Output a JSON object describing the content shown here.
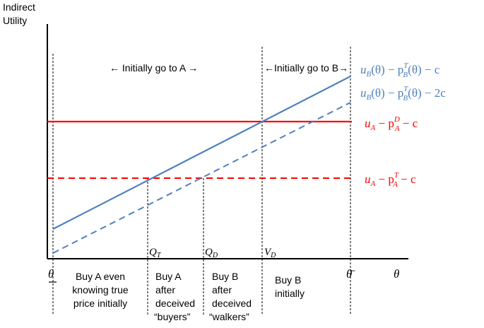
{
  "y_axis_label_line1": "Indirect",
  "y_axis_label_line2": "Utility",
  "x_axis_label": "θ",
  "theta_low": "θ",
  "theta_high": "θ̄",
  "arrow_A": "←  Initially go to A  →",
  "arrow_B": "←Initially go to B→",
  "ticks": {
    "q_t": {
      "base": "Q",
      "sub": "T"
    },
    "q_d": {
      "base": "Q",
      "sub": "D"
    },
    "v_d": {
      "base": "V",
      "sub": "D"
    }
  },
  "curves": {
    "blue_solid": {
      "prefix": "u",
      "sub": "B",
      "mid": "(θ) − p",
      "sup": "T",
      "sub2": "B",
      "suffix": "(θ) − c",
      "color": "#4F81BD"
    },
    "blue_dashed": {
      "prefix": "u",
      "sub": "B",
      "mid": "(θ) − p",
      "sup": "T",
      "sub2": "B",
      "suffix": "(θ) − 2c",
      "color": "#4F81BD"
    },
    "red_solid": {
      "prefix": "u",
      "sub": "A",
      "mid": " − p",
      "sup": "D",
      "sub2": "A",
      "suffix": " − c",
      "color": "#FF0000"
    },
    "red_dashed": {
      "prefix": "u",
      "sub": "A",
      "mid": " − p",
      "sup": "T",
      "sub2": "A",
      "suffix": " − c",
      "color": "#FF0000"
    }
  },
  "regions": [
    {
      "lines": [
        "Buy A even",
        "knowing true",
        "price initially"
      ]
    },
    {
      "lines": [
        "Buy A",
        "after",
        "deceived",
        "“buyers”"
      ]
    },
    {
      "lines": [
        "Buy B",
        "after",
        "deceived",
        "“walkers”"
      ]
    },
    {
      "lines": [
        "Buy B",
        "initially"
      ]
    }
  ]
}
